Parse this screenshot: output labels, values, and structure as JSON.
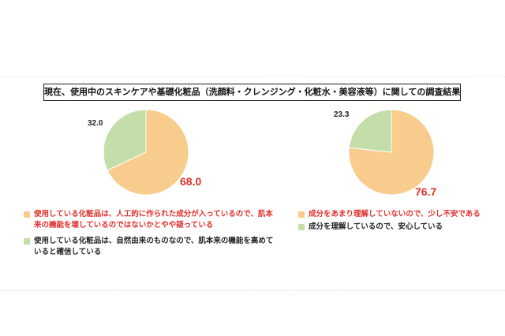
{
  "title": "現在、使用中のスキンケアや基礎化粧品（洗顔料・クレンジング・化粧水・美容液等）に関しての調査結果",
  "colors": {
    "orange": "#f8cc8c",
    "green": "#c4deaa",
    "red_text": "#e0302b",
    "dark_text": "#222222"
  },
  "chart_data": [
    {
      "type": "pie",
      "title": "",
      "slices": [
        {
          "label": "使用している化粧品は、人工的に作られた成分が入っているので、肌本来の機能を壊しているのではないかとやや疑っている",
          "value": 68.0,
          "display": "68.0",
          "color": "#f8cc8c"
        },
        {
          "label": "使用している化粧品は、自然由来のものなので、肌本来の機能を高めていると確信している",
          "value": 32.0,
          "display": "32.0",
          "color": "#c4deaa"
        }
      ],
      "legend": [
        {
          "text": "使用している化粧品は、人工的に作られた成分が入っているので、肌本来の機能を壊しているのではないかとやや疑っている",
          "color": "#f8cc8c",
          "text_color": "red"
        },
        {
          "text": "使用している化粧品は、自然由来のものなので、肌本来の機能を高めていると確信している",
          "color": "#c4deaa",
          "text_color": "dark"
        }
      ]
    },
    {
      "type": "pie",
      "title": "",
      "slices": [
        {
          "label": "成分をあまり理解していないので、少し不安である",
          "value": 76.7,
          "display": "76.7",
          "color": "#f8cc8c"
        },
        {
          "label": "成分を理解しているので、安心している",
          "value": 23.3,
          "display": "23.3",
          "color": "#c4deaa"
        }
      ],
      "legend": [
        {
          "text": "成分をあまり理解していないので、少し不安である",
          "color": "#f8cc8c",
          "text_color": "red"
        },
        {
          "text": "成分を理解しているので、安心している",
          "color": "#c4deaa",
          "text_color": "dark"
        }
      ]
    }
  ]
}
